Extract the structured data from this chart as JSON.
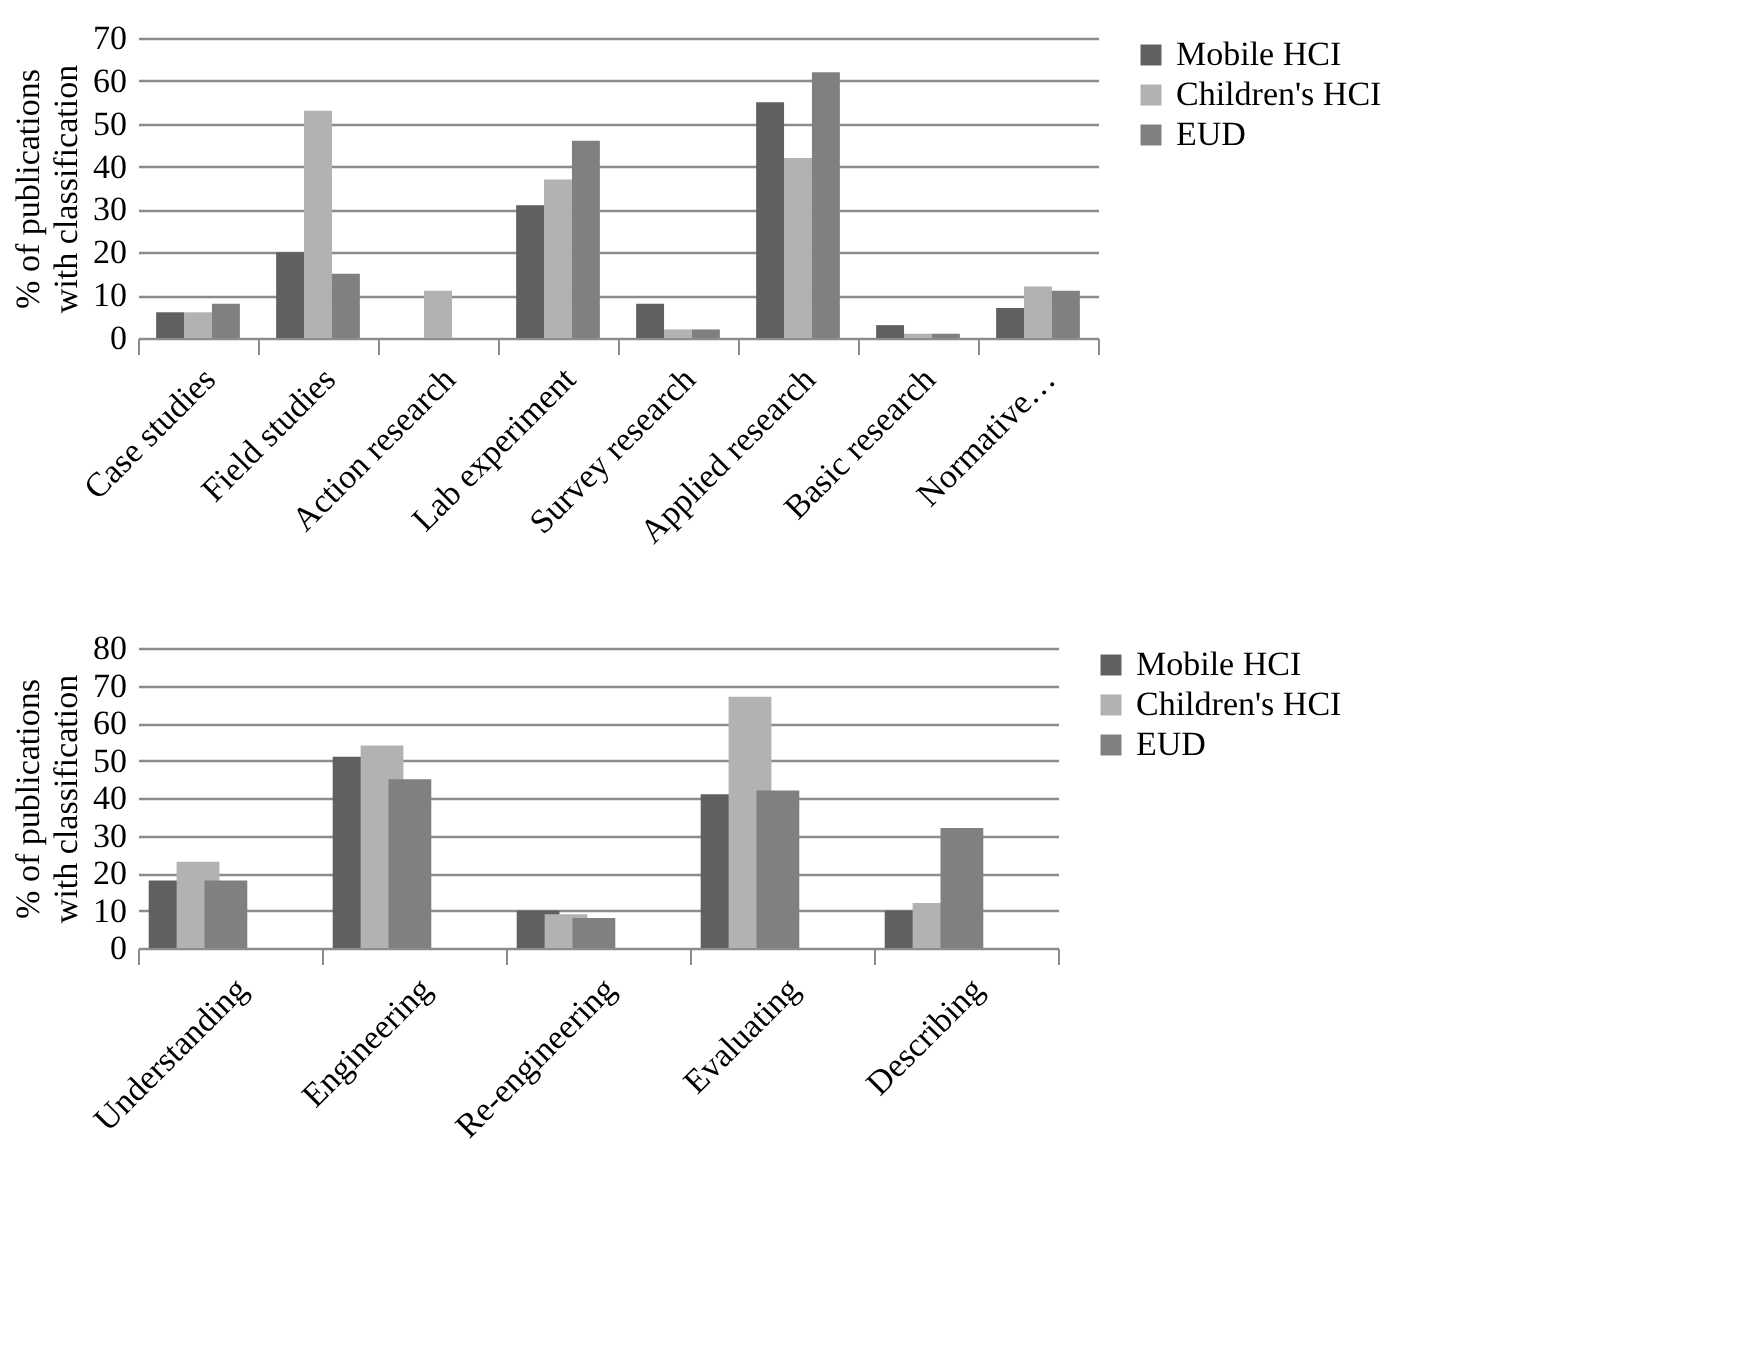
{
  "chart_data": [
    {
      "type": "bar",
      "ylabel": "% of publications with classification",
      "categories": [
        "Case studies",
        "Field studies",
        "Action research",
        "Lab experiment",
        "Survey research",
        "Applied research",
        "Basic research",
        "Normative…"
      ],
      "series": [
        {
          "name": "Mobile HCI",
          "color": "#606060",
          "values": [
            6,
            20,
            0,
            31,
            8,
            55,
            3,
            7
          ]
        },
        {
          "name": "Children's HCI",
          "color": "#b2b2b2",
          "values": [
            6,
            53,
            11,
            37,
            2,
            42,
            1,
            12
          ]
        },
        {
          "name": "EUD",
          "color": "#808080",
          "values": [
            8,
            15,
            0,
            46,
            2,
            62,
            1,
            11
          ]
        }
      ],
      "ylim": [
        0,
        70
      ],
      "yticks": [
        0,
        10,
        20,
        30,
        40,
        50,
        60,
        70
      ],
      "grid": "y",
      "legend": "right"
    },
    {
      "type": "bar",
      "ylabel": "% of publications with classification",
      "categories": [
        "Understanding",
        "Engineering",
        "Re-engineering",
        "Evaluating",
        "Describing"
      ],
      "series": [
        {
          "name": "Mobile HCI",
          "color": "#606060",
          "values": [
            18,
            51,
            10,
            41,
            10
          ]
        },
        {
          "name": "Children's HCI",
          "color": "#b2b2b2",
          "values": [
            23,
            54,
            9,
            67,
            12
          ]
        },
        {
          "name": "EUD",
          "color": "#808080",
          "values": [
            18,
            45,
            8,
            42,
            32
          ]
        }
      ],
      "ylim": [
        0,
        80
      ],
      "yticks": [
        0,
        10,
        20,
        30,
        40,
        50,
        60,
        70,
        80
      ],
      "grid": "y",
      "legend": "right"
    }
  ]
}
